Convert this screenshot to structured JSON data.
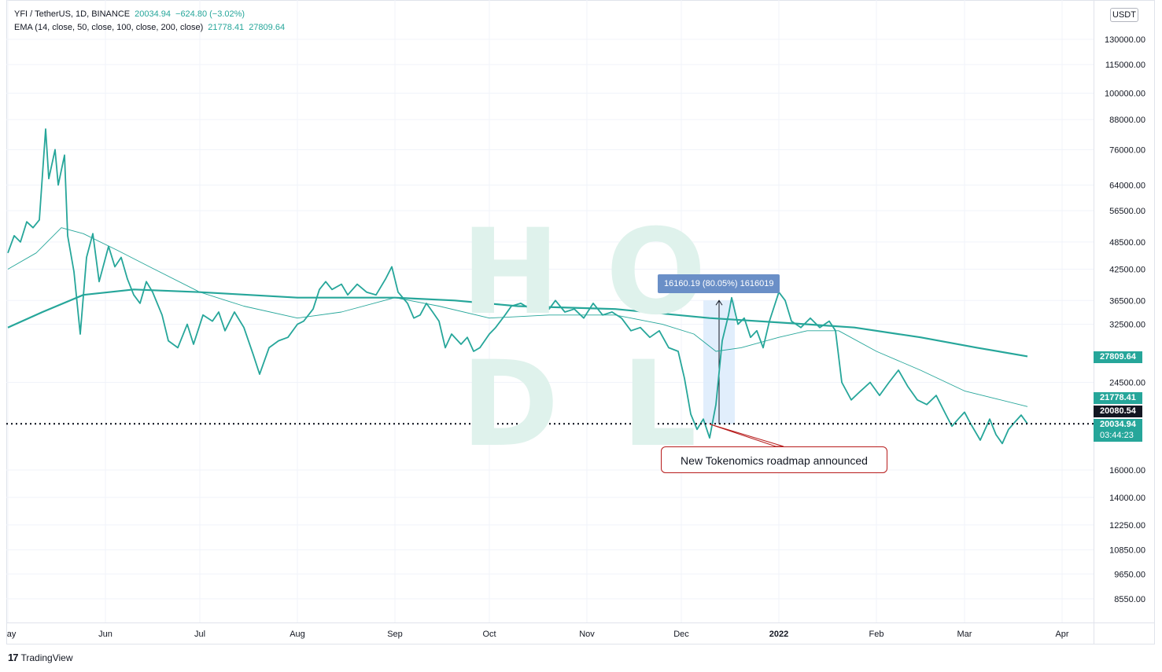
{
  "header": {
    "symbol": "YFI / TetherUS, 1D, BINANCE",
    "price": "20034.94",
    "change": "−624.80 (−3.02%)",
    "indicator_label": "EMA (14, close, 50, close, 100, close, 200, close)",
    "ema_fast_value": "21778.41",
    "ema_slow_value": "27809.64"
  },
  "watermark": [
    "H",
    "O",
    "D",
    "L"
  ],
  "currency_badge": "USDT",
  "price_tags": {
    "ema_slow": "27809.64",
    "ema_fast": "21778.41",
    "current_dark": "20080.54",
    "last_price": "20034.94",
    "countdown": "03:44:23"
  },
  "measure_label": "16160.19 (80.05%) 1616019",
  "annotation": "New Tokenomics roadmap announced",
  "brand": "TradingView",
  "colors": {
    "price_line": "#26a69a",
    "ema_line": "#26a69a",
    "measure_fill": "#dcebfb",
    "tooltip": "#6a8fc7",
    "annotation_border": "#b71c1c",
    "dark_tag": "#131722"
  },
  "chart_data": {
    "type": "line",
    "scale": "log",
    "y_ticks": [
      "130000.00",
      "115000.00",
      "100000.00",
      "88000.00",
      "76000.00",
      "64000.00",
      "56500.00",
      "48500.00",
      "42500.00",
      "36500.00",
      "32500.00",
      "24500.00",
      "16000.00",
      "14000.00",
      "12250.00",
      "10850.00",
      "9650.00",
      "8550.00"
    ],
    "y_tick_values": [
      130000,
      115000,
      100000,
      88000,
      76000,
      64000,
      56500,
      48500,
      42500,
      36500,
      32500,
      24500,
      16000,
      14000,
      12250,
      10850,
      9650,
      8550
    ],
    "x_ticks": [
      "May",
      "Jun",
      "Jul",
      "Aug",
      "Sep",
      "Oct",
      "Nov",
      "Dec",
      "2022",
      "Feb",
      "Mar",
      "Apr"
    ],
    "x_tick_dates": [
      "2021-05-01",
      "2021-06-01",
      "2021-07-01",
      "2021-08-01",
      "2021-09-01",
      "2021-10-01",
      "2021-11-01",
      "2021-12-01",
      "2022-01-01",
      "2022-02-01",
      "2022-03-01",
      "2022-04-01"
    ],
    "ylim": [
      8000,
      150000
    ],
    "last_price": 20034.94,
    "grid": true,
    "series": [
      {
        "name": "YFI / TetherUS",
        "points": [
          [
            "2021-05-01",
            46000
          ],
          [
            "2021-05-03",
            50000
          ],
          [
            "2021-05-05",
            48500
          ],
          [
            "2021-05-07",
            53500
          ],
          [
            "2021-05-09",
            52000
          ],
          [
            "2021-05-11",
            54000
          ],
          [
            "2021-05-13",
            84000
          ],
          [
            "2021-05-14",
            66000
          ],
          [
            "2021-05-16",
            76000
          ],
          [
            "2021-05-17",
            64000
          ],
          [
            "2021-05-19",
            74000
          ],
          [
            "2021-05-20",
            50000
          ],
          [
            "2021-05-22",
            42000
          ],
          [
            "2021-05-24",
            31000
          ],
          [
            "2021-05-26",
            45000
          ],
          [
            "2021-05-28",
            50500
          ],
          [
            "2021-05-30",
            40000
          ],
          [
            "2021-06-02",
            47500
          ],
          [
            "2021-06-04",
            43000
          ],
          [
            "2021-06-06",
            45000
          ],
          [
            "2021-06-08",
            40500
          ],
          [
            "2021-06-10",
            37500
          ],
          [
            "2021-06-12",
            36000
          ],
          [
            "2021-06-14",
            40000
          ],
          [
            "2021-06-16",
            38000
          ],
          [
            "2021-06-19",
            34000
          ],
          [
            "2021-06-21",
            30000
          ],
          [
            "2021-06-24",
            29000
          ],
          [
            "2021-06-27",
            32500
          ],
          [
            "2021-06-29",
            29500
          ],
          [
            "2021-07-02",
            34000
          ],
          [
            "2021-07-05",
            33000
          ],
          [
            "2021-07-07",
            34500
          ],
          [
            "2021-07-09",
            31500
          ],
          [
            "2021-07-12",
            34500
          ],
          [
            "2021-07-15",
            32000
          ],
          [
            "2021-07-18",
            28000
          ],
          [
            "2021-07-20",
            25500
          ],
          [
            "2021-07-23",
            29000
          ],
          [
            "2021-07-26",
            30000
          ],
          [
            "2021-07-29",
            30500
          ],
          [
            "2021-08-01",
            32500
          ],
          [
            "2021-08-03",
            33000
          ],
          [
            "2021-08-06",
            35000
          ],
          [
            "2021-08-08",
            38500
          ],
          [
            "2021-08-10",
            40000
          ],
          [
            "2021-08-12",
            38500
          ],
          [
            "2021-08-15",
            39500
          ],
          [
            "2021-08-17",
            37500
          ],
          [
            "2021-08-20",
            39500
          ],
          [
            "2021-08-23",
            38000
          ],
          [
            "2021-08-26",
            37500
          ],
          [
            "2021-08-29",
            40500
          ],
          [
            "2021-08-31",
            43000
          ],
          [
            "2021-09-02",
            38000
          ],
          [
            "2021-09-05",
            36000
          ],
          [
            "2021-09-07",
            33500
          ],
          [
            "2021-09-09",
            34000
          ],
          [
            "2021-09-11",
            36000
          ],
          [
            "2021-09-13",
            34500
          ],
          [
            "2021-09-15",
            33000
          ],
          [
            "2021-09-17",
            29000
          ],
          [
            "2021-09-19",
            31000
          ],
          [
            "2021-09-22",
            29500
          ],
          [
            "2021-09-24",
            30500
          ],
          [
            "2021-09-26",
            28500
          ],
          [
            "2021-09-28",
            29000
          ],
          [
            "2021-10-01",
            31000
          ],
          [
            "2021-10-03",
            32000
          ],
          [
            "2021-10-06",
            34000
          ],
          [
            "2021-10-08",
            35500
          ],
          [
            "2021-10-11",
            36000
          ],
          [
            "2021-10-14",
            35000
          ],
          [
            "2021-10-17",
            36500
          ],
          [
            "2021-10-20",
            35000
          ],
          [
            "2021-10-22",
            36500
          ],
          [
            "2021-10-25",
            34500
          ],
          [
            "2021-10-28",
            35000
          ],
          [
            "2021-10-31",
            33500
          ],
          [
            "2021-11-03",
            36000
          ],
          [
            "2021-11-06",
            34000
          ],
          [
            "2021-11-09",
            34500
          ],
          [
            "2021-11-12",
            33500
          ],
          [
            "2021-11-15",
            31500
          ],
          [
            "2021-11-18",
            32000
          ],
          [
            "2021-11-21",
            30500
          ],
          [
            "2021-11-24",
            31500
          ],
          [
            "2021-11-27",
            29000
          ],
          [
            "2021-11-30",
            28500
          ],
          [
            "2021-12-02",
            25000
          ],
          [
            "2021-12-04",
            21000
          ],
          [
            "2021-12-06",
            19500
          ],
          [
            "2021-12-08",
            20500
          ],
          [
            "2021-12-10",
            18700
          ],
          [
            "2021-12-12",
            22000
          ],
          [
            "2021-12-14",
            30000
          ],
          [
            "2021-12-16",
            34000
          ],
          [
            "2021-12-17",
            37000
          ],
          [
            "2021-12-19",
            32500
          ],
          [
            "2021-12-21",
            33500
          ],
          [
            "2021-12-23",
            30500
          ],
          [
            "2021-12-25",
            31500
          ],
          [
            "2021-12-27",
            29000
          ],
          [
            "2021-12-29",
            33000
          ],
          [
            "2022-01-01",
            38000
          ],
          [
            "2022-01-03",
            36500
          ],
          [
            "2022-01-05",
            33000
          ],
          [
            "2022-01-08",
            32000
          ],
          [
            "2022-01-11",
            33500
          ],
          [
            "2022-01-14",
            32000
          ],
          [
            "2022-01-17",
            33000
          ],
          [
            "2022-01-19",
            31500
          ],
          [
            "2022-01-21",
            24500
          ],
          [
            "2022-01-24",
            22500
          ],
          [
            "2022-01-27",
            23500
          ],
          [
            "2022-01-30",
            24500
          ],
          [
            "2022-02-02",
            23000
          ],
          [
            "2022-02-05",
            24500
          ],
          [
            "2022-02-08",
            26000
          ],
          [
            "2022-02-11",
            24000
          ],
          [
            "2022-02-14",
            22500
          ],
          [
            "2022-02-17",
            22000
          ],
          [
            "2022-02-20",
            23000
          ],
          [
            "2022-02-23",
            21000
          ],
          [
            "2022-02-25",
            19800
          ],
          [
            "2022-02-27",
            20500
          ],
          [
            "2022-03-01",
            21200
          ],
          [
            "2022-03-03",
            20000
          ],
          [
            "2022-03-06",
            18500
          ],
          [
            "2022-03-09",
            20500
          ],
          [
            "2022-03-11",
            19000
          ],
          [
            "2022-03-13",
            18200
          ],
          [
            "2022-03-15",
            19500
          ],
          [
            "2022-03-17",
            20200
          ],
          [
            "2022-03-19",
            20900
          ],
          [
            "2022-03-21",
            20034.94
          ]
        ]
      },
      {
        "name": "EMA 50",
        "points": [
          [
            "2021-05-01",
            42500
          ],
          [
            "2021-05-10",
            46000
          ],
          [
            "2021-05-18",
            52000
          ],
          [
            "2021-05-25",
            50500
          ],
          [
            "2021-06-05",
            46500
          ],
          [
            "2021-06-15",
            43000
          ],
          [
            "2021-07-01",
            38000
          ],
          [
            "2021-07-15",
            35500
          ],
          [
            "2021-08-01",
            33500
          ],
          [
            "2021-08-15",
            34500
          ],
          [
            "2021-09-01",
            37000
          ],
          [
            "2021-09-15",
            35500
          ],
          [
            "2021-10-01",
            33500
          ],
          [
            "2021-10-20",
            34000
          ],
          [
            "2021-11-10",
            34000
          ],
          [
            "2021-11-25",
            32500
          ],
          [
            "2021-12-05",
            31000
          ],
          [
            "2021-12-12",
            28500
          ],
          [
            "2021-12-20",
            29000
          ],
          [
            "2022-01-01",
            30500
          ],
          [
            "2022-01-10",
            31500
          ],
          [
            "2022-01-20",
            31500
          ],
          [
            "2022-02-01",
            28500
          ],
          [
            "2022-02-15",
            26000
          ],
          [
            "2022-03-01",
            23500
          ],
          [
            "2022-03-21",
            21778.41
          ]
        ]
      },
      {
        "name": "EMA 200",
        "points": [
          [
            "2021-05-01",
            32000
          ],
          [
            "2021-05-12",
            34500
          ],
          [
            "2021-05-25",
            37500
          ],
          [
            "2021-06-10",
            38500
          ],
          [
            "2021-07-01",
            38000
          ],
          [
            "2021-08-01",
            37000
          ],
          [
            "2021-09-01",
            37000
          ],
          [
            "2021-09-20",
            36500
          ],
          [
            "2021-10-10",
            35500
          ],
          [
            "2021-11-10",
            35000
          ],
          [
            "2021-12-10",
            33500
          ],
          [
            "2022-01-10",
            32500
          ],
          [
            "2022-01-25",
            32000
          ],
          [
            "2022-02-15",
            30500
          ],
          [
            "2022-03-05",
            29000
          ],
          [
            "2022-03-21",
            27809.64
          ]
        ]
      }
    ],
    "measure": {
      "from_date": "2021-12-08",
      "to_date": "2021-12-18",
      "low": 20000,
      "high": 36500
    }
  }
}
